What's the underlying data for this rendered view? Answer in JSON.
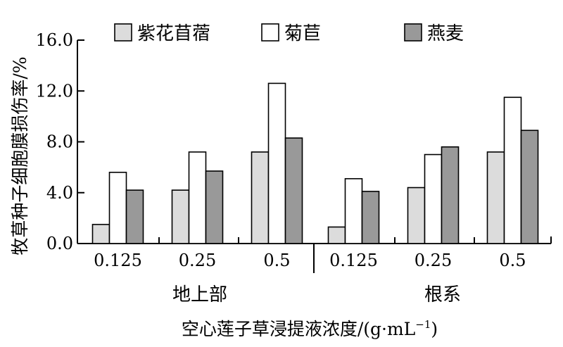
{
  "chart_data": {
    "type": "bar",
    "xlabel": "空心莲子草浸提液浓度/(g·mL⁻¹)",
    "xlabel_main": "空心莲子草浸提液浓度/(g·mL",
    "xlabel_exp": "−1",
    "xlabel_close": ")",
    "ylabel": "牧草种子细胞膜损伤率/%",
    "ylim": [
      0,
      16
    ],
    "yticks": [
      "0.0",
      "4.0",
      "8.0",
      "12.0",
      "16.0"
    ],
    "groups": [
      {
        "label": "地上部",
        "categories": [
          "0.125",
          "0.25",
          "0.5"
        ]
      },
      {
        "label": "根系",
        "categories": [
          "0.125",
          "0.25",
          "0.5"
        ]
      }
    ],
    "series": [
      {
        "name": "紫花苜蓿",
        "color": "#dcdcdc",
        "values": [
          1.5,
          4.2,
          7.2,
          1.3,
          4.4,
          7.2
        ]
      },
      {
        "name": "菊苣",
        "color": "#ffffff",
        "values": [
          5.6,
          7.2,
          12.6,
          5.1,
          7.0,
          11.5
        ]
      },
      {
        "name": "燕麦",
        "color": "#999999",
        "values": [
          4.2,
          5.7,
          8.3,
          4.1,
          7.6,
          8.9
        ]
      }
    ],
    "legend_position": "top",
    "grid": false
  }
}
